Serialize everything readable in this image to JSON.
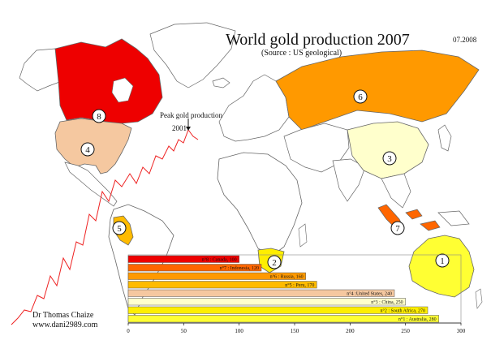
{
  "header": {
    "title": "World gold production 2007",
    "subtitle": "(Source : US geological)",
    "date": "07.2008"
  },
  "annotation": {
    "peak_label": "Peak gold production",
    "peak_year": "2001"
  },
  "author": {
    "name": "Dr Thomas Chaize",
    "site": "www.dani2989.com"
  },
  "map_ranks": [
    {
      "country": "Australia",
      "rank": "1",
      "color": "#ffff33"
    },
    {
      "country": "South Africa",
      "rank": "2",
      "color": "#ffee00"
    },
    {
      "country": "China",
      "rank": "3",
      "color": "#ffffcc"
    },
    {
      "country": "United States",
      "rank": "4",
      "color": "#f5c8a0"
    },
    {
      "country": "Peru",
      "rank": "5",
      "color": "#ffbb00"
    },
    {
      "country": "Russia",
      "rank": "6",
      "color": "#ff9900"
    },
    {
      "country": "Indonesia",
      "rank": "7",
      "color": "#ff6600"
    },
    {
      "country": "Canada",
      "rank": "8",
      "color": "#ee0000"
    }
  ],
  "chart_data": {
    "type": "bar",
    "orientation": "horizontal",
    "categories": [
      "n°8 : Canada",
      "n°7 : Indonesia",
      "n°6 : Russia",
      "n°5 : Peru",
      "n°4 :United States",
      "n°3 : China",
      "n°2 : South Africa",
      "n°1 : Australia"
    ],
    "labels": [
      "n°8 : Canada, 100",
      "n°7 : Indonesia, 120",
      "n°6 : Russia, 160",
      "n°5 : Peru, 170",
      "n°4 :United States, 240",
      "n°3 : China, 250",
      "n°2 : South Africa, 270",
      "n°1 : Australia, 280"
    ],
    "values": [
      100,
      120,
      160,
      170,
      240,
      250,
      270,
      280
    ],
    "colors": [
      "#ee0000",
      "#ff6600",
      "#ff9900",
      "#ffbb00",
      "#f5c8a0",
      "#ffffcc",
      "#ffee00",
      "#ffff33"
    ],
    "xlim": [
      0,
      300
    ],
    "xticks": [
      "0",
      "50",
      "100",
      "150",
      "200",
      "250",
      "300"
    ],
    "grid": false
  }
}
